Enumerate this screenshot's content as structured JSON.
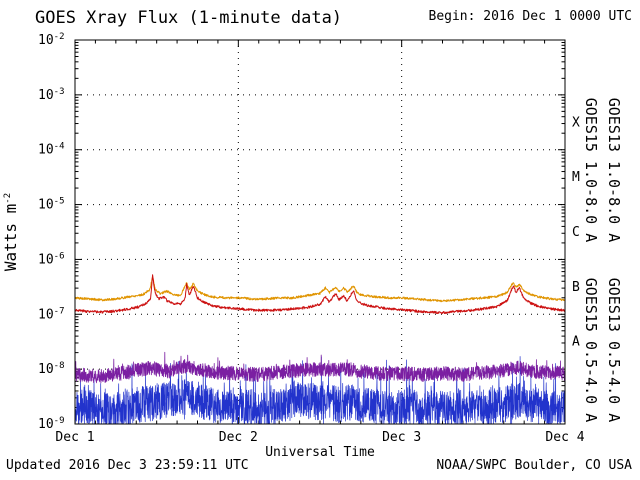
{
  "footer": {
    "updated": "Updated 2016 Dec  3 23:59:11 UTC",
    "credit": "NOAA/SWPC Boulder, CO USA"
  },
  "chart_data": {
    "type": "line",
    "title": "GOES Xray Flux (1-minute data)",
    "begin_label": "Begin:  2016 Dec 1 0000 UTC",
    "xlabel": "Universal Time",
    "ylabel": "Watts m-2",
    "ylabel_parts": {
      "base": "Watts m",
      "exp": "-2"
    },
    "x_hours_range": [
      0,
      72
    ],
    "x_minor_step_hours": 3,
    "x_major_ticks": [
      {
        "hour": 0,
        "label": "Dec 1"
      },
      {
        "hour": 24,
        "label": "Dec 2"
      },
      {
        "hour": 48,
        "label": "Dec 3"
      },
      {
        "hour": 72,
        "label": "Dec 4"
      }
    ],
    "ylog_range": [
      -9,
      -2
    ],
    "y_tick_exponents": [
      -2,
      -3,
      -4,
      -5,
      -6,
      -7,
      -8,
      -9
    ],
    "grid_exponents": [
      -3,
      -4,
      -5,
      -6,
      -7,
      -8
    ],
    "vgrid_hours": [
      24,
      48
    ],
    "grid_on": true,
    "legend_position": "right",
    "axis_color": "#000000",
    "flare_classes": [
      {
        "label": "X",
        "log_center": -3.5
      },
      {
        "label": "M",
        "log_center": -4.5
      },
      {
        "label": "C",
        "log_center": -5.5
      },
      {
        "label": "B",
        "log_center": -6.5
      },
      {
        "label": "A",
        "log_center": -7.5
      }
    ],
    "series": [
      {
        "id": "goes15-short",
        "name": "GOES15 0.5-4.0 A",
        "color": "#2233cc",
        "width": 0.7,
        "step": 0.03,
        "seed": 11,
        "noise_amp": 0.33,
        "spike_prob": 0.07,
        "spike_amp": 0.6,
        "dip_prob": 0.05,
        "dip_amp": 0.45,
        "keypoints": [
          [
            0,
            -8.7
          ],
          [
            3,
            -8.72
          ],
          [
            6,
            -8.76
          ],
          [
            9,
            -8.66
          ],
          [
            12,
            -8.6
          ],
          [
            14,
            -8.55
          ],
          [
            16,
            -8.5
          ],
          [
            18,
            -8.55
          ],
          [
            20,
            -8.65
          ],
          [
            22,
            -8.72
          ],
          [
            25,
            -8.68
          ],
          [
            28,
            -8.72
          ],
          [
            31,
            -8.64
          ],
          [
            33,
            -8.56
          ],
          [
            35,
            -8.6
          ],
          [
            37,
            -8.6
          ],
          [
            39,
            -8.64
          ],
          [
            41,
            -8.6
          ],
          [
            44,
            -8.68
          ],
          [
            47,
            -8.72
          ],
          [
            50,
            -8.68
          ],
          [
            53,
            -8.72
          ],
          [
            56,
            -8.68
          ],
          [
            59,
            -8.72
          ],
          [
            61,
            -8.68
          ],
          [
            63,
            -8.64
          ],
          [
            65,
            -8.56
          ],
          [
            67,
            -8.64
          ],
          [
            69,
            -8.68
          ],
          [
            72,
            -8.72
          ]
        ]
      },
      {
        "id": "goes13-short",
        "name": "GOES13 0.5-4.0 A",
        "color": "#7b1fa2",
        "width": 0.8,
        "step": 0.03,
        "seed": 23,
        "noise_amp": 0.13,
        "spike_prob": 0.02,
        "spike_amp": 0.22,
        "keypoints": [
          [
            0,
            -8.1
          ],
          [
            4,
            -8.13
          ],
          [
            8,
            -8.05
          ],
          [
            11,
            -7.98
          ],
          [
            12,
            -8.0
          ],
          [
            14,
            -8.04
          ],
          [
            16,
            -7.95
          ],
          [
            18,
            -8.0
          ],
          [
            21,
            -8.06
          ],
          [
            24,
            -8.08
          ],
          [
            27,
            -8.1
          ],
          [
            30,
            -8.06
          ],
          [
            33,
            -8.02
          ],
          [
            36,
            -8.0
          ],
          [
            38,
            -8.02
          ],
          [
            40,
            -8.0
          ],
          [
            42,
            -8.04
          ],
          [
            45,
            -8.08
          ],
          [
            48,
            -8.08
          ],
          [
            51,
            -8.1
          ],
          [
            54,
            -8.08
          ],
          [
            57,
            -8.1
          ],
          [
            60,
            -8.06
          ],
          [
            62,
            -8.04
          ],
          [
            64,
            -8.0
          ],
          [
            65,
            -7.97
          ],
          [
            67,
            -8.04
          ],
          [
            69,
            -8.06
          ],
          [
            72,
            -8.08
          ]
        ]
      },
      {
        "id": "goes13-long",
        "name": "GOES13 1.0-8.0 A",
        "color": "#e09400",
        "width": 1,
        "step": 0.05,
        "seed": 5,
        "noise_amp": 0.02,
        "keypoints": [
          [
            0,
            -6.7
          ],
          [
            2,
            -6.72
          ],
          [
            4,
            -6.74
          ],
          [
            6,
            -6.72
          ],
          [
            8,
            -6.68
          ],
          [
            10,
            -6.64
          ],
          [
            11,
            -6.55
          ],
          [
            11.4,
            -6.32
          ],
          [
            11.8,
            -6.55
          ],
          [
            12.5,
            -6.62
          ],
          [
            13.5,
            -6.58
          ],
          [
            14.5,
            -6.64
          ],
          [
            15.5,
            -6.66
          ],
          [
            16.4,
            -6.42
          ],
          [
            16.8,
            -6.55
          ],
          [
            17.4,
            -6.44
          ],
          [
            18,
            -6.58
          ],
          [
            19,
            -6.64
          ],
          [
            20,
            -6.68
          ],
          [
            22,
            -6.7
          ],
          [
            24,
            -6.7
          ],
          [
            26,
            -6.72
          ],
          [
            28,
            -6.72
          ],
          [
            30,
            -6.7
          ],
          [
            32,
            -6.7
          ],
          [
            34,
            -6.66
          ],
          [
            36,
            -6.62
          ],
          [
            36.8,
            -6.52
          ],
          [
            37.4,
            -6.6
          ],
          [
            38.3,
            -6.5
          ],
          [
            38.8,
            -6.58
          ],
          [
            39.5,
            -6.52
          ],
          [
            40,
            -6.6
          ],
          [
            40.9,
            -6.48
          ],
          [
            41.4,
            -6.6
          ],
          [
            42,
            -6.64
          ],
          [
            43,
            -6.66
          ],
          [
            44,
            -6.68
          ],
          [
            46,
            -6.7
          ],
          [
            48,
            -6.7
          ],
          [
            50,
            -6.72
          ],
          [
            52,
            -6.74
          ],
          [
            54,
            -6.76
          ],
          [
            56,
            -6.74
          ],
          [
            58,
            -6.72
          ],
          [
            60,
            -6.7
          ],
          [
            62,
            -6.68
          ],
          [
            63.5,
            -6.6
          ],
          [
            64.4,
            -6.42
          ],
          [
            64.8,
            -6.5
          ],
          [
            65.3,
            -6.46
          ],
          [
            66,
            -6.58
          ],
          [
            67,
            -6.64
          ],
          [
            68,
            -6.68
          ],
          [
            70,
            -6.72
          ],
          [
            72,
            -6.74
          ]
        ]
      },
      {
        "id": "goes15-long",
        "name": "GOES15 1.0-8.0 A",
        "color": "#cc1111",
        "width": 1,
        "step": 0.05,
        "seed": 3,
        "noise_amp": 0.022,
        "keypoints": [
          [
            0,
            -6.92
          ],
          [
            2,
            -6.95
          ],
          [
            4,
            -6.96
          ],
          [
            6,
            -6.94
          ],
          [
            8,
            -6.9
          ],
          [
            9.5,
            -6.86
          ],
          [
            10.5,
            -6.8
          ],
          [
            11.1,
            -6.72
          ],
          [
            11.4,
            -6.3
          ],
          [
            11.8,
            -6.62
          ],
          [
            12.3,
            -6.72
          ],
          [
            13,
            -6.68
          ],
          [
            13.5,
            -6.75
          ],
          [
            14.5,
            -6.8
          ],
          [
            15.5,
            -6.82
          ],
          [
            16.2,
            -6.7
          ],
          [
            16.4,
            -6.45
          ],
          [
            16.8,
            -6.65
          ],
          [
            17.4,
            -6.48
          ],
          [
            18,
            -6.7
          ],
          [
            19,
            -6.78
          ],
          [
            20,
            -6.84
          ],
          [
            22,
            -6.88
          ],
          [
            24,
            -6.9
          ],
          [
            26,
            -6.92
          ],
          [
            28,
            -6.93
          ],
          [
            30,
            -6.92
          ],
          [
            32,
            -6.9
          ],
          [
            34,
            -6.88
          ],
          [
            36,
            -6.82
          ],
          [
            36.8,
            -6.68
          ],
          [
            37.4,
            -6.78
          ],
          [
            38.3,
            -6.62
          ],
          [
            38.8,
            -6.74
          ],
          [
            39.5,
            -6.66
          ],
          [
            40,
            -6.76
          ],
          [
            40.9,
            -6.56
          ],
          [
            41.4,
            -6.74
          ],
          [
            42,
            -6.8
          ],
          [
            43,
            -6.84
          ],
          [
            44,
            -6.86
          ],
          [
            46,
            -6.9
          ],
          [
            48,
            -6.92
          ],
          [
            50,
            -6.94
          ],
          [
            52,
            -6.96
          ],
          [
            54,
            -6.97
          ],
          [
            56,
            -6.95
          ],
          [
            58,
            -6.93
          ],
          [
            60,
            -6.9
          ],
          [
            62,
            -6.86
          ],
          [
            63.5,
            -6.75
          ],
          [
            64.4,
            -6.48
          ],
          [
            64.8,
            -6.6
          ],
          [
            65.3,
            -6.52
          ],
          [
            66,
            -6.72
          ],
          [
            67,
            -6.8
          ],
          [
            68,
            -6.85
          ],
          [
            70,
            -6.9
          ],
          [
            72,
            -6.93
          ]
        ]
      }
    ]
  }
}
